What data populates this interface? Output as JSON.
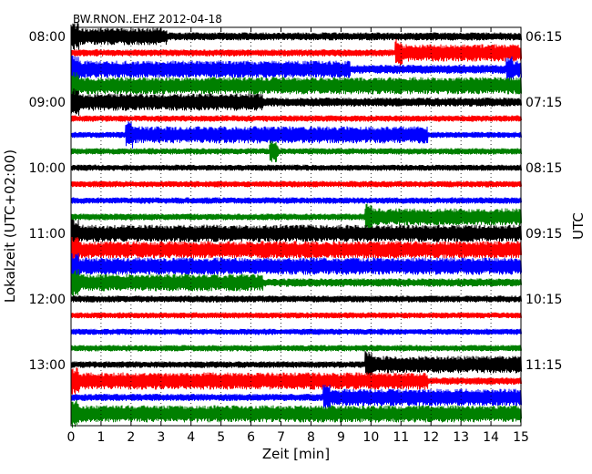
{
  "chart_data": {
    "type": "line",
    "title": "BW.RNON..EHZ 2012-04-18",
    "xlabel": "Zeit  [min]",
    "ylabel_left": "Lokalzeit (UTC+02:00)",
    "ylabel_right": "UTC",
    "xlim": [
      0,
      15
    ],
    "x_ticks": [
      "0",
      "1",
      "2",
      "3",
      "4",
      "5",
      "6",
      "7",
      "8",
      "9",
      "10",
      "11",
      "12",
      "13",
      "14",
      "15"
    ],
    "left_ticks": [
      "08:00",
      "09:00",
      "10:00",
      "11:00",
      "12:00",
      "13:00"
    ],
    "right_ticks": [
      "06:15",
      "07:15",
      "08:15",
      "09:15",
      "10:15",
      "11:15"
    ],
    "grid": "vertical-dotted",
    "trace_colors": [
      "#000000",
      "#ff0000",
      "#0000ff",
      "#008000"
    ],
    "traces": [
      {
        "amp": 0.7,
        "events": [
          {
            "start": 0,
            "end": 3.2,
            "amp": 1.0
          }
        ]
      },
      {
        "amp": 0.5,
        "events": [
          {
            "start": 10.8,
            "end": 15,
            "amp": 1.0
          }
        ]
      },
      {
        "amp": 0.85,
        "events": [
          {
            "start": 0,
            "end": 9.3,
            "amp": 1.0
          },
          {
            "start": 14.5,
            "end": 15,
            "amp": 1.0
          }
        ]
      },
      {
        "amp": 0.9,
        "events": [
          {
            "start": 0,
            "end": 15,
            "amp": 1.0
          }
        ]
      },
      {
        "amp": 0.85,
        "events": [
          {
            "start": 0,
            "end": 6.4,
            "amp": 1.0
          }
        ]
      },
      {
        "amp": 0.4,
        "events": []
      },
      {
        "amp": 0.35,
        "events": [
          {
            "start": 1.8,
            "end": 11.9,
            "amp": 1.0
          }
        ]
      },
      {
        "amp": 0.4,
        "events": [
          {
            "start": 6.6,
            "end": 6.9,
            "amp": 0.7
          }
        ]
      },
      {
        "amp": 0.35,
        "events": []
      },
      {
        "amp": 0.4,
        "events": []
      },
      {
        "amp": 0.4,
        "events": []
      },
      {
        "amp": 0.45,
        "events": [
          {
            "start": 9.8,
            "end": 15,
            "amp": 1.0
          }
        ]
      },
      {
        "amp": 1.0,
        "events": [
          {
            "start": 0,
            "end": 15,
            "amp": 1.0
          }
        ]
      },
      {
        "amp": 1.0,
        "events": [
          {
            "start": 0,
            "end": 15,
            "amp": 1.0
          }
        ]
      },
      {
        "amp": 1.0,
        "events": [
          {
            "start": 0,
            "end": 15,
            "amp": 1.0
          }
        ]
      },
      {
        "amp": 0.75,
        "events": [
          {
            "start": 0,
            "end": 6.4,
            "amp": 1.0
          }
        ]
      },
      {
        "amp": 0.5,
        "events": []
      },
      {
        "amp": 0.35,
        "events": []
      },
      {
        "amp": 0.35,
        "events": []
      },
      {
        "amp": 0.4,
        "events": []
      },
      {
        "amp": 0.45,
        "events": [
          {
            "start": 9.8,
            "end": 15,
            "amp": 1.0
          }
        ]
      },
      {
        "amp": 0.55,
        "events": [
          {
            "start": 0,
            "end": 11.9,
            "amp": 1.0
          }
        ]
      },
      {
        "amp": 0.55,
        "events": [
          {
            "start": 8.4,
            "end": 15,
            "amp": 1.0
          }
        ]
      },
      {
        "amp": 1.0,
        "events": [
          {
            "start": 0,
            "end": 15,
            "amp": 1.0
          }
        ]
      }
    ]
  }
}
